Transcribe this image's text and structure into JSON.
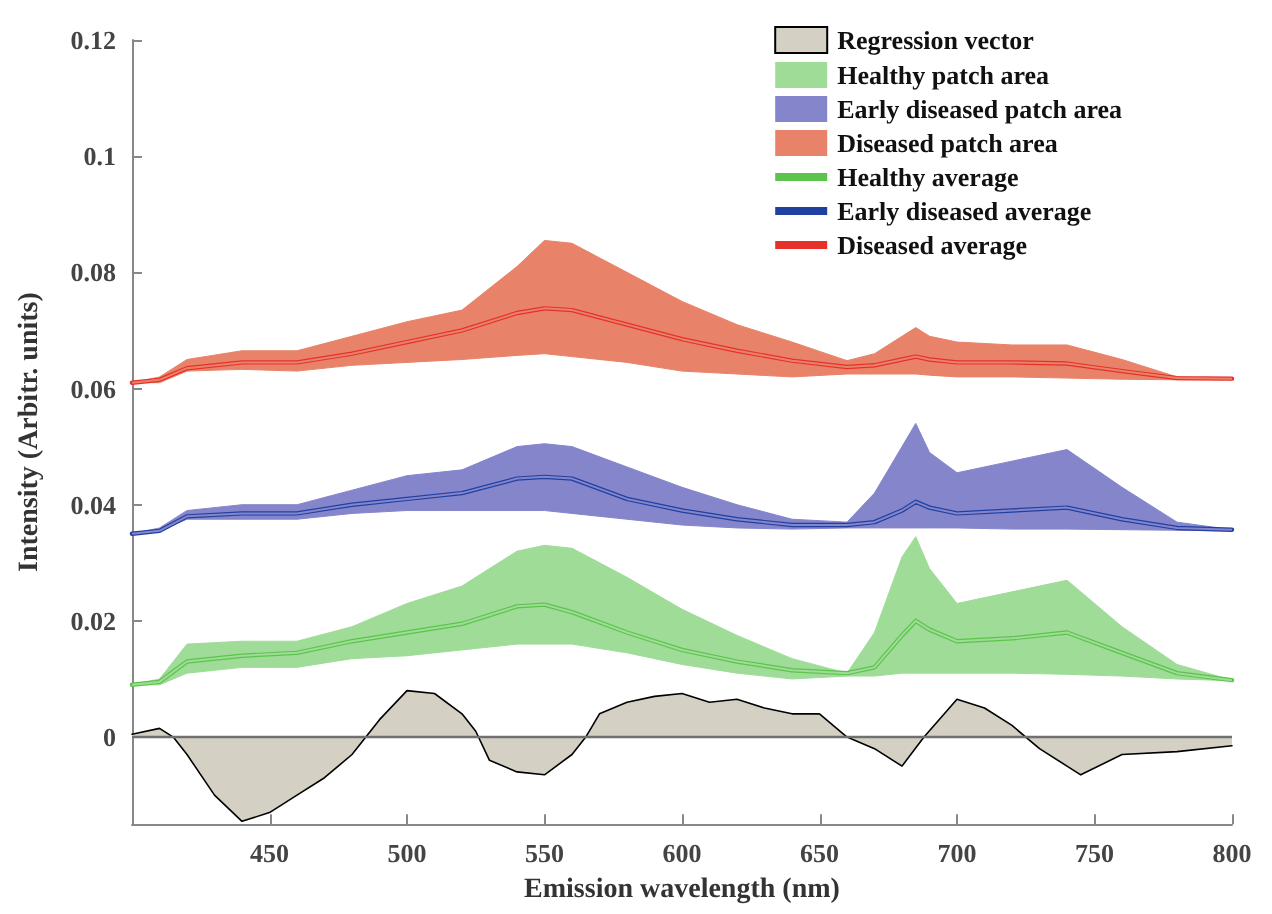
{
  "chart_data": {
    "type": "line",
    "xlabel": "Emission wavelength (nm)",
    "ylabel": "Intensity (Arbitr. units)",
    "x": [
      400,
      410,
      420,
      440,
      460,
      480,
      500,
      520,
      540,
      550,
      560,
      580,
      600,
      620,
      640,
      660,
      670,
      680,
      685,
      690,
      700,
      720,
      740,
      760,
      780,
      800
    ],
    "xlim": [
      400,
      800
    ],
    "xticks": [
      450,
      500,
      550,
      600,
      650,
      700,
      750,
      800
    ],
    "ylim": [
      -0.015,
      0.12
    ],
    "yticks": [
      0,
      0.02,
      0.04,
      0.06,
      0.08,
      0.1,
      0.12
    ],
    "grid": false,
    "legend": "top right",
    "marker": "none",
    "line_style": "solid",
    "ref_lines": [
      {
        "axis": "y",
        "value": 0,
        "color": "#707070"
      }
    ],
    "series": [
      {
        "name": "Regression vector",
        "type": "area",
        "color": "#d4d0c4",
        "x": [
          400,
          410,
          415,
          420,
          430,
          440,
          450,
          460,
          470,
          480,
          490,
          500,
          510,
          520,
          525,
          530,
          540,
          550,
          560,
          565,
          570,
          580,
          590,
          600,
          610,
          620,
          630,
          640,
          650,
          660,
          670,
          680,
          688,
          700,
          710,
          720,
          730,
          740,
          745,
          760,
          780,
          800
        ],
        "values": [
          0.0005,
          0.0015,
          0,
          -0.003,
          -0.01,
          -0.0145,
          -0.013,
          -0.01,
          -0.007,
          -0.003,
          0.003,
          0.008,
          0.0075,
          0.004,
          0.001,
          -0.004,
          -0.006,
          -0.0065,
          -0.003,
          0,
          0.004,
          0.006,
          0.007,
          0.0075,
          0.006,
          0.0065,
          0.005,
          0.004,
          0.004,
          0,
          -0.002,
          -0.005,
          0,
          0.0065,
          0.005,
          0.002,
          -0.002,
          -0.005,
          -0.0065,
          -0.003,
          -0.0025,
          -0.0015
        ]
      },
      {
        "name": "Healthy patch area",
        "color": "#9fdc98",
        "values": [
          0.009,
          0.0095,
          0.013,
          0.014,
          0.0145,
          0.0165,
          0.018,
          0.0195,
          0.0225,
          0.0228,
          0.0215,
          0.018,
          0.015,
          0.013,
          0.0115,
          0.011,
          0.012,
          0.0175,
          0.02,
          0.0185,
          0.0165,
          0.017,
          0.018,
          0.0145,
          0.011,
          0.0098
        ],
        "lower": [
          0.009,
          0.009,
          0.011,
          0.012,
          0.012,
          0.0135,
          0.014,
          0.015,
          0.016,
          0.016,
          0.016,
          0.0145,
          0.0125,
          0.011,
          0.01,
          0.0105,
          0.0105,
          0.011,
          0.011,
          0.011,
          0.011,
          0.011,
          0.0108,
          0.0105,
          0.01,
          0.0097
        ],
        "upper": [
          0.009,
          0.01,
          0.016,
          0.0165,
          0.0165,
          0.019,
          0.023,
          0.026,
          0.032,
          0.033,
          0.0325,
          0.0275,
          0.022,
          0.0175,
          0.0135,
          0.011,
          0.018,
          0.031,
          0.0345,
          0.029,
          0.023,
          0.025,
          0.027,
          0.019,
          0.0125,
          0.0098
        ]
      },
      {
        "name": "Early diseased patch area",
        "color": "#8585cc",
        "values": [
          0.035,
          0.0355,
          0.038,
          0.0385,
          0.0385,
          0.04,
          0.041,
          0.042,
          0.0445,
          0.0448,
          0.0445,
          0.041,
          0.039,
          0.0375,
          0.0365,
          0.0365,
          0.037,
          0.039,
          0.0405,
          0.0395,
          0.0385,
          0.039,
          0.0395,
          0.0375,
          0.036,
          0.0357
        ],
        "lower": [
          0.035,
          0.0355,
          0.0375,
          0.0375,
          0.0375,
          0.0385,
          0.039,
          0.039,
          0.039,
          0.039,
          0.0385,
          0.0375,
          0.0365,
          0.036,
          0.0358,
          0.036,
          0.036,
          0.036,
          0.036,
          0.036,
          0.036,
          0.0358,
          0.0358,
          0.0357,
          0.0356,
          0.0355
        ],
        "upper": [
          0.035,
          0.036,
          0.039,
          0.04,
          0.04,
          0.0425,
          0.045,
          0.046,
          0.05,
          0.0505,
          0.05,
          0.0465,
          0.043,
          0.04,
          0.0375,
          0.037,
          0.042,
          0.05,
          0.054,
          0.049,
          0.0455,
          0.0475,
          0.0495,
          0.043,
          0.037,
          0.0357
        ]
      },
      {
        "name": "Diseased patch area",
        "color": "#e8836a",
        "values": [
          0.061,
          0.0615,
          0.0635,
          0.0645,
          0.0645,
          0.066,
          0.068,
          0.07,
          0.073,
          0.0738,
          0.0735,
          0.071,
          0.0685,
          0.0665,
          0.0648,
          0.0637,
          0.064,
          0.065,
          0.0655,
          0.065,
          0.0645,
          0.0645,
          0.0643,
          0.063,
          0.0618,
          0.0617
        ],
        "lower": [
          0.061,
          0.061,
          0.063,
          0.0633,
          0.063,
          0.064,
          0.0645,
          0.065,
          0.0657,
          0.066,
          0.0655,
          0.0645,
          0.063,
          0.0625,
          0.062,
          0.0625,
          0.0625,
          0.0625,
          0.0625,
          0.0623,
          0.062,
          0.062,
          0.0618,
          0.0616,
          0.0615,
          0.0615
        ],
        "upper": [
          0.061,
          0.062,
          0.065,
          0.0665,
          0.0665,
          0.069,
          0.0715,
          0.0735,
          0.081,
          0.0855,
          0.085,
          0.08,
          0.075,
          0.071,
          0.068,
          0.0648,
          0.066,
          0.069,
          0.0705,
          0.069,
          0.068,
          0.0675,
          0.0675,
          0.065,
          0.062,
          0.0617
        ]
      },
      {
        "name": "Healthy average",
        "color": "#5cc44c",
        "values": [
          0.009,
          0.0095,
          0.013,
          0.014,
          0.0145,
          0.0165,
          0.018,
          0.0195,
          0.0225,
          0.0228,
          0.0215,
          0.018,
          0.015,
          0.013,
          0.0115,
          0.011,
          0.012,
          0.0175,
          0.02,
          0.0185,
          0.0165,
          0.017,
          0.018,
          0.0145,
          0.011,
          0.0098
        ]
      },
      {
        "name": "Early diseased average",
        "color": "#2040a0",
        "values": [
          0.035,
          0.0355,
          0.038,
          0.0385,
          0.0385,
          0.04,
          0.041,
          0.042,
          0.0445,
          0.0448,
          0.0445,
          0.041,
          0.039,
          0.0375,
          0.0365,
          0.0365,
          0.037,
          0.039,
          0.0405,
          0.0395,
          0.0385,
          0.039,
          0.0395,
          0.0375,
          0.036,
          0.0357
        ]
      },
      {
        "name": "Diseased average",
        "color": "#e8302a",
        "values": [
          0.061,
          0.0615,
          0.0635,
          0.0645,
          0.0645,
          0.066,
          0.068,
          0.07,
          0.073,
          0.0738,
          0.0735,
          0.071,
          0.0685,
          0.0665,
          0.0648,
          0.0637,
          0.064,
          0.065,
          0.0655,
          0.065,
          0.0645,
          0.0645,
          0.0643,
          0.063,
          0.0618,
          0.0617
        ]
      }
    ]
  }
}
